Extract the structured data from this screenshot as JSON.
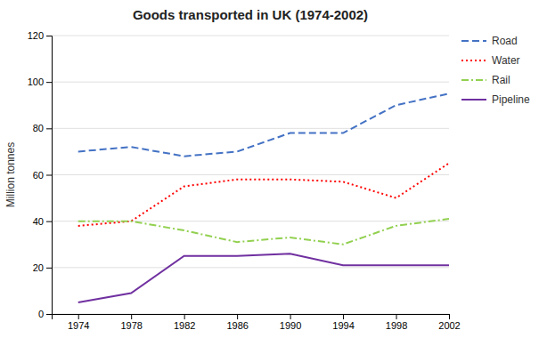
{
  "chart_data": {
    "type": "line",
    "title": "Goods transported in UK (1974-2002)",
    "y_label": "Million tonnes",
    "x": [
      1974,
      1978,
      1982,
      1986,
      1990,
      1994,
      1998,
      2002
    ],
    "series": [
      {
        "name": "Road",
        "color": "#4472C4",
        "line_style": "dashed",
        "values": [
          70,
          72,
          68,
          70,
          78,
          78,
          90,
          95
        ]
      },
      {
        "name": "Water",
        "color": "#FF0000",
        "line_style": "dotted",
        "values": [
          38,
          40,
          55,
          58,
          58,
          57,
          50,
          65
        ]
      },
      {
        "name": "Rail",
        "color": "#92D050",
        "line_style": "dashdot",
        "values": [
          40,
          40,
          36,
          31,
          33,
          30,
          38,
          41
        ]
      },
      {
        "name": "Pipeline",
        "color": "#7030A0",
        "line_style": "solid",
        "values": [
          5,
          9,
          25,
          25,
          26,
          21,
          21,
          21
        ]
      }
    ],
    "xlim": [
      1972,
      2002
    ],
    "xticks": [
      1974,
      1978,
      1982,
      1986,
      1990,
      1994,
      1998,
      2002
    ],
    "ylim": [
      0,
      120
    ],
    "yticks": [
      0,
      20,
      40,
      60,
      80,
      100,
      120
    ],
    "grid": true,
    "legend": "right"
  }
}
